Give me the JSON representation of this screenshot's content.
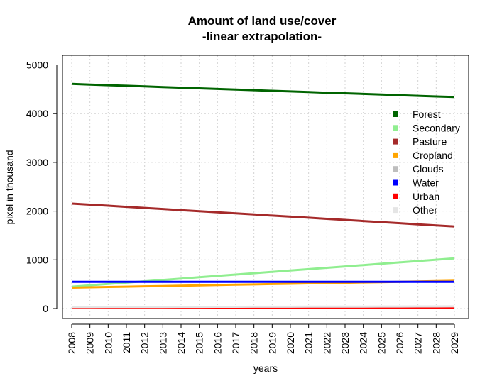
{
  "chart_data": {
    "type": "line",
    "title": "Amount of land use/cover",
    "subtitle": "-linear extrapolation-",
    "xlabel": "years",
    "ylabel": "pixel in thousand",
    "x": [
      "2008",
      "2009",
      "2010",
      "2011",
      "2012",
      "2013",
      "2014",
      "2015",
      "2016",
      "2017",
      "2018",
      "2019",
      "2020",
      "2021",
      "2022",
      "2023",
      "2024",
      "2025",
      "2026",
      "2027",
      "2028",
      "2029"
    ],
    "yticks": [
      "0",
      "1000",
      "2000",
      "3000",
      "4000",
      "5000"
    ],
    "ylim": [
      -200,
      5200
    ],
    "grid": true,
    "legend_position": "right",
    "series": [
      {
        "name": "Forest",
        "color": "#006400",
        "start": 4610,
        "end": 4340
      },
      {
        "name": "Secondary",
        "color": "#90ee90",
        "start": 450,
        "end": 1030
      },
      {
        "name": "Pasture",
        "color": "#a52a2a",
        "start": 2155,
        "end": 1685
      },
      {
        "name": "Cropland",
        "color": "#ffa500",
        "start": 430,
        "end": 570
      },
      {
        "name": "Clouds",
        "color": "#bebebe",
        "start": 10,
        "end": 10
      },
      {
        "name": "Water",
        "color": "#0000ff",
        "start": 550,
        "end": 550
      },
      {
        "name": "Urban",
        "color": "#ff0000",
        "start": 10,
        "end": 20
      },
      {
        "name": "Other",
        "color": "#e5e5e5",
        "start": 30,
        "end": 45
      }
    ]
  }
}
